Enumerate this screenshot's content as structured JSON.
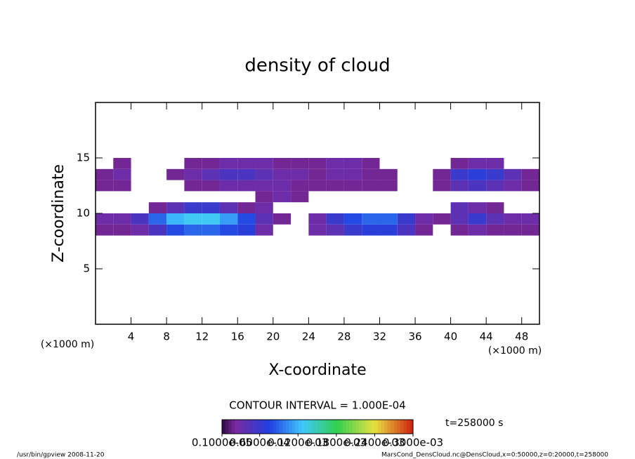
{
  "chart_data": {
    "type": "heatmap",
    "title": "density of cloud",
    "xlabel": "X-coordinate",
    "ylabel": "Z-coordinate",
    "xunit": "(×1000 m)",
    "yunit": "(×1000 m)",
    "xlim": [
      0,
      50
    ],
    "ylim": [
      0,
      20
    ],
    "xticks": [
      4,
      8,
      12,
      16,
      20,
      24,
      28,
      32,
      36,
      40,
      44,
      48
    ],
    "yticks": [
      5,
      10,
      15
    ],
    "x_edges": [
      0,
      2,
      4,
      6,
      8,
      10,
      12,
      14,
      16,
      18,
      20,
      22,
      24,
      26,
      28,
      30,
      32,
      34,
      36,
      38,
      40,
      42,
      44,
      46,
      48,
      50
    ],
    "z_edges": [
      8,
      9,
      10,
      11,
      12,
      13,
      14,
      15
    ],
    "values": [
      [
        2e-05,
        2e-05,
        3e-05,
        5e-05,
        8e-05,
        9e-05,
        9e-05,
        8e-05,
        7e-05,
        3e-05,
        null,
        null,
        3e-05,
        4e-05,
        6e-05,
        7e-05,
        7e-05,
        5e-05,
        2e-05,
        null,
        2e-05,
        3e-05,
        2e-05,
        2e-05,
        2e-05
      ],
      [
        3e-05,
        3e-05,
        5e-05,
        9e-05,
        0.00012,
        0.00013,
        0.00013,
        0.00011,
        8e-05,
        4e-05,
        2e-05,
        null,
        3e-05,
        6e-05,
        8e-05,
        9e-05,
        9e-05,
        6e-05,
        3e-05,
        2e-05,
        4e-05,
        6e-05,
        4e-05,
        3e-05,
        3e-05
      ],
      [
        null,
        null,
        null,
        2e-05,
        4e-05,
        6e-05,
        6e-05,
        4e-05,
        2e-05,
        3e-05,
        null,
        null,
        null,
        null,
        null,
        null,
        null,
        null,
        null,
        null,
        4e-05,
        3e-05,
        2e-05,
        null,
        null
      ],
      [
        null,
        null,
        null,
        null,
        null,
        null,
        null,
        null,
        null,
        2e-05,
        3e-05,
        2e-05,
        null,
        null,
        null,
        null,
        null,
        null,
        null,
        null,
        null,
        null,
        null,
        null,
        null
      ],
      [
        2e-05,
        2e-05,
        null,
        null,
        null,
        2e-05,
        2e-05,
        3e-05,
        3e-05,
        3e-05,
        3e-05,
        2e-05,
        2e-05,
        2e-05,
        2e-05,
        2e-05,
        2e-05,
        null,
        null,
        2e-05,
        4e-05,
        5e-05,
        4e-05,
        3e-05,
        2e-05
      ],
      [
        2e-05,
        3e-05,
        null,
        null,
        2e-05,
        3e-05,
        4e-05,
        5e-05,
        5e-05,
        4e-05,
        3e-05,
        3e-05,
        2e-05,
        3e-05,
        3e-05,
        2e-05,
        2e-05,
        null,
        null,
        2e-05,
        6e-05,
        7e-05,
        6e-05,
        4e-05,
        2e-05
      ],
      [
        null,
        2e-05,
        null,
        null,
        null,
        2e-05,
        2e-05,
        3e-05,
        3e-05,
        3e-05,
        2e-05,
        2e-05,
        2e-05,
        3e-05,
        3e-05,
        2e-05,
        null,
        null,
        null,
        null,
        2e-05,
        3e-05,
        3e-05,
        null,
        null
      ]
    ],
    "clim": [
      1e-06,
      0.0003
    ],
    "colormap": {
      "stops": [
        0,
        0.07,
        0.25,
        0.42,
        0.6,
        0.8,
        1
      ],
      "colors": [
        "#2a0a40",
        "#7a2a9e",
        "#2040e0",
        "#40c8ff",
        "#30d050",
        "#e8e040",
        "#d02010"
      ]
    },
    "colorbar_ticks": [
      {
        "value": 1e-06,
        "label": "0.1000e-05"
      },
      {
        "value": 6e-05,
        "label": "0.6000e-04"
      },
      {
        "value": 0.00012,
        "label": "0.1200e-03"
      },
      {
        "value": 0.00018,
        "label": "0.1800e-03"
      },
      {
        "value": 0.00024,
        "label": "0.2400e-03"
      },
      {
        "value": 0.0003,
        "label": "0.3000e-03"
      }
    ],
    "contour_interval": "CONTOUR INTERVAL = 1.000E-04",
    "time_label": "t=258000 s",
    "footer_left": "/usr/bin/gpview   2008-11-20",
    "footer_right": "MarsCond_DensCloud.nc@DensCloud,x=0:50000,z=0:20000,t=258000"
  }
}
